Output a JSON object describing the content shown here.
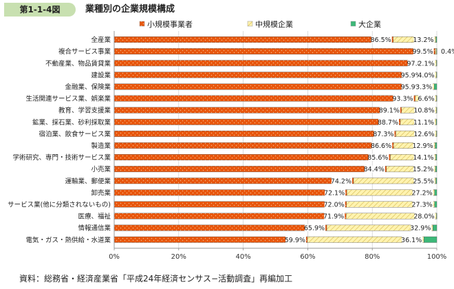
{
  "figure": {
    "number": "第1-1-4図",
    "title": "業種別の企業規模構成"
  },
  "source_note": "資料：総務省・経済産業省「平成24年経済センサス−活動調査」再編加工",
  "colors": {
    "small": "#e8560c",
    "medium": "#fff3b0",
    "medium_hatch": "#d9c05a",
    "large": "#3cb878",
    "small_dot": "#f7b98a",
    "axis": "#888888",
    "grid": "#cccccc"
  },
  "chart_data": {
    "type": "bar",
    "orientation": "horizontal",
    "stacked": true,
    "percent": true,
    "legend_position": "top",
    "xlim": [
      0,
      100
    ],
    "xticks": [
      "0%",
      "20%",
      "40%",
      "60%",
      "80%",
      "100%"
    ],
    "categories": [
      "全産業",
      "複合サービス事業",
      "不動産業、物品賃貸業",
      "建設業",
      "金融業、保険業",
      "生活関連サービス業、娯楽業",
      "教育、学習支援業",
      "鉱業、採石業、砂利採取業",
      "宿泊業、飲食サービス業",
      "製造業",
      "学術研究、専門・技術サービス業",
      "小売業",
      "運輸業、郵便業",
      "卸売業",
      "サービス業(他に分類されないもの)",
      "医療、福祉",
      "情報通信業",
      "電気・ガス・熱供給・水道業"
    ],
    "series": [
      {
        "name": "小規模事業者",
        "values": [
          86.5,
          99.5,
          97.8,
          95.9,
          95.9,
          93.3,
          89.1,
          88.7,
          87.3,
          86.6,
          85.6,
          84.4,
          74.2,
          72.1,
          72.0,
          71.9,
          65.9,
          59.9
        ],
        "labels": [
          "86.5%",
          "99.5%",
          "97.8%",
          "95.9%",
          "95.9%",
          "93.3%",
          "89.1%",
          "88.7%",
          "87.3%",
          "86.6%",
          "85.6%",
          "84.4%",
          "74.2%",
          "72.1%",
          "72.0%",
          "71.9%",
          "65.9%",
          "59.9%"
        ]
      },
      {
        "name": "中規模企業",
        "values": [
          13.2,
          0.4,
          2.1,
          4.0,
          3.3,
          6.6,
          10.8,
          11.1,
          12.6,
          12.9,
          14.1,
          15.2,
          25.5,
          27.2,
          27.3,
          28.0,
          32.9,
          36.1
        ],
        "labels": [
          "13.2%",
          "0.4%",
          "2.1%",
          "4.0%",
          "3.3%",
          "6.6%",
          "10.8%",
          "11.1%",
          "12.6%",
          "12.9%",
          "14.1%",
          "15.2%",
          "25.5%",
          "27.2%",
          "27.3%",
          "28.0%",
          "32.9%",
          "36.1%"
        ]
      },
      {
        "name": "大企業",
        "values": [
          0.3,
          0.1,
          0.1,
          0.1,
          0.8,
          0.1,
          0.1,
          0.2,
          0.1,
          0.5,
          0.3,
          0.4,
          0.3,
          0.7,
          0.7,
          0.1,
          1.2,
          4.0
        ]
      }
    ]
  }
}
